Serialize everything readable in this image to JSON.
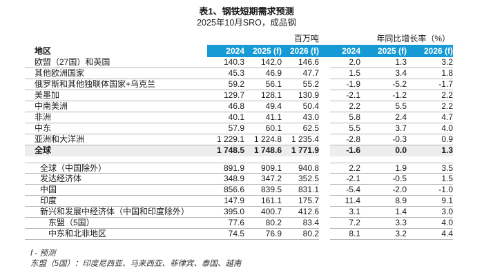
{
  "title": "表1、钢铁短期需求预测",
  "subtitle": "2025年10月SRO，成品钢",
  "colors": {
    "header_bg": "#169ad6",
    "header_text": "#ffffff",
    "total_row_bg": "#ededed",
    "rule": "#b5b5b5"
  },
  "table": {
    "region_header": "地区",
    "group_headers": {
      "tonnes": "百万吨",
      "growth": "年同比增长率（%）"
    },
    "year_headers": [
      "2024",
      "2025 (f)",
      "2026 (f)",
      "2024",
      "2025 (f)",
      "2026 (f)"
    ],
    "sections": [
      {
        "top_rule": false,
        "rows": [
          {
            "label": "欧盟（27国）和英国",
            "indent": 0,
            "bold": false,
            "values": [
              "140.3",
              "142.0",
              "146.6",
              "2.0",
              "1.3",
              "3.2"
            ]
          },
          {
            "label": "其他欧洲国家",
            "indent": 0,
            "bold": false,
            "values": [
              "45.3",
              "46.9",
              "47.7",
              "1.5",
              "3.4",
              "1.8"
            ]
          },
          {
            "label": "俄罗斯和其他独联体国家+乌克兰",
            "indent": 0,
            "bold": false,
            "values": [
              "59.2",
              "56.1",
              "55.2",
              "-1.9",
              "-5.2",
              "-1.7"
            ]
          },
          {
            "label": "美墨加",
            "indent": 0,
            "bold": false,
            "values": [
              "129.7",
              "128.1",
              "130.9",
              "-2.1",
              "-1.2",
              "2.2"
            ]
          },
          {
            "label": "中南美洲",
            "indent": 0,
            "bold": false,
            "values": [
              "46.8",
              "49.4",
              "50.4",
              "2.2",
              "5.5",
              "2.2"
            ]
          },
          {
            "label": "非洲",
            "indent": 0,
            "bold": false,
            "values": [
              "40.1",
              "41.1",
              "43.0",
              "5.8",
              "2.4",
              "4.7"
            ]
          },
          {
            "label": "中东",
            "indent": 0,
            "bold": false,
            "values": [
              "57.9",
              "60.1",
              "62.5",
              "5.5",
              "3.7",
              "4.0"
            ]
          },
          {
            "label": "亚洲和大洋洲",
            "indent": 0,
            "bold": false,
            "values": [
              "1 229.1",
              "1 224.8",
              "1 235.4",
              "-2.8",
              "-0.3",
              "0.9"
            ]
          },
          {
            "label": "全球",
            "indent": 0,
            "bold": true,
            "highlight": true,
            "values": [
              "1 748.5",
              "1 748.6",
              "1 771.9",
              "-1.6",
              "0.0",
              "1.3"
            ]
          }
        ]
      },
      {
        "top_rule": true,
        "rows": [
          {
            "label": "全球（中国除外）",
            "indent": 1,
            "bold": false,
            "values": [
              "891.9",
              "909.1",
              "940.8",
              "2.2",
              "1.9",
              "3.5"
            ]
          },
          {
            "label": "发达经济体",
            "indent": 1,
            "bold": false,
            "values": [
              "348.9",
              "347.2",
              "352.5",
              "-2.1",
              "-0.5",
              "1.5"
            ]
          },
          {
            "label": "中国",
            "indent": 1,
            "bold": false,
            "values": [
              "856.6",
              "839.5",
              "831.1",
              "-5.4",
              "-2.0",
              "-1.0"
            ]
          },
          {
            "label": "印度",
            "indent": 1,
            "bold": false,
            "values": [
              "147.9",
              "161.1",
              "175.7",
              "11.4",
              "8.9",
              "9.1"
            ]
          },
          {
            "label": "新兴和发展中经济体（中国和印度除外）",
            "indent": 1,
            "bold": false,
            "values": [
              "395.0",
              "400.7",
              "412.6",
              "3.1",
              "1.4",
              "3.0"
            ]
          },
          {
            "label": "东盟（5国）",
            "indent": 2,
            "bold": false,
            "values": [
              "77.6",
              "80.2",
              "83.4",
              "7.2",
              "3.3",
              "4.0"
            ]
          },
          {
            "label": "中东和北非地区",
            "indent": 2,
            "bold": false,
            "values": [
              "74.5",
              "76.9",
              "80.2",
              "8.1",
              "3.2",
              "4.4"
            ]
          }
        ]
      }
    ]
  },
  "footnotes": {
    "forecast_note": "f - 预测",
    "asean_note": "东盟（5国）：印度尼西亚、马来西亚、菲律宾、泰国、越南"
  },
  "chart_data": {
    "type": "table",
    "title": "表1、钢铁短期需求预测",
    "subtitle": "2025年10月SRO，成品钢",
    "column_groups": [
      "百万吨",
      "年同比增长率（%）"
    ],
    "columns": [
      "2024",
      "2025 (f)",
      "2026 (f)",
      "2024",
      "2025 (f)",
      "2026 (f)"
    ],
    "rows": [
      {
        "region": "欧盟（27国）和英国",
        "mt": [
          140.3,
          142.0,
          146.6
        ],
        "yoy_pct": [
          2.0,
          1.3,
          3.2
        ]
      },
      {
        "region": "其他欧洲国家",
        "mt": [
          45.3,
          46.9,
          47.7
        ],
        "yoy_pct": [
          1.5,
          3.4,
          1.8
        ]
      },
      {
        "region": "俄罗斯和其他独联体国家+乌克兰",
        "mt": [
          59.2,
          56.1,
          55.2
        ],
        "yoy_pct": [
          -1.9,
          -5.2,
          -1.7
        ]
      },
      {
        "region": "美墨加",
        "mt": [
          129.7,
          128.1,
          130.9
        ],
        "yoy_pct": [
          -2.1,
          -1.2,
          2.2
        ]
      },
      {
        "region": "中南美洲",
        "mt": [
          46.8,
          49.4,
          50.4
        ],
        "yoy_pct": [
          2.2,
          5.5,
          2.2
        ]
      },
      {
        "region": "非洲",
        "mt": [
          40.1,
          41.1,
          43.0
        ],
        "yoy_pct": [
          5.8,
          2.4,
          4.7
        ]
      },
      {
        "region": "中东",
        "mt": [
          57.9,
          60.1,
          62.5
        ],
        "yoy_pct": [
          5.5,
          3.7,
          4.0
        ]
      },
      {
        "region": "亚洲和大洋洲",
        "mt": [
          1229.1,
          1224.8,
          1235.4
        ],
        "yoy_pct": [
          -2.8,
          -0.3,
          0.9
        ]
      },
      {
        "region": "全球",
        "mt": [
          1748.5,
          1748.6,
          1771.9
        ],
        "yoy_pct": [
          -1.6,
          0.0,
          1.3
        ]
      },
      {
        "region": "全球（中国除外）",
        "mt": [
          891.9,
          909.1,
          940.8
        ],
        "yoy_pct": [
          2.2,
          1.9,
          3.5
        ]
      },
      {
        "region": "发达经济体",
        "mt": [
          348.9,
          347.2,
          352.5
        ],
        "yoy_pct": [
          -2.1,
          -0.5,
          1.5
        ]
      },
      {
        "region": "中国",
        "mt": [
          856.6,
          839.5,
          831.1
        ],
        "yoy_pct": [
          -5.4,
          -2.0,
          -1.0
        ]
      },
      {
        "region": "印度",
        "mt": [
          147.9,
          161.1,
          175.7
        ],
        "yoy_pct": [
          11.4,
          8.9,
          9.1
        ]
      },
      {
        "region": "新兴和发展中经济体（中国和印度除外）",
        "mt": [
          395.0,
          400.7,
          412.6
        ],
        "yoy_pct": [
          3.1,
          1.4,
          3.0
        ]
      },
      {
        "region": "东盟（5国）",
        "mt": [
          77.6,
          80.2,
          83.4
        ],
        "yoy_pct": [
          7.2,
          3.3,
          4.0
        ]
      },
      {
        "region": "中东和北非地区",
        "mt": [
          74.5,
          76.9,
          80.2
        ],
        "yoy_pct": [
          8.1,
          3.2,
          4.4
        ]
      }
    ]
  }
}
